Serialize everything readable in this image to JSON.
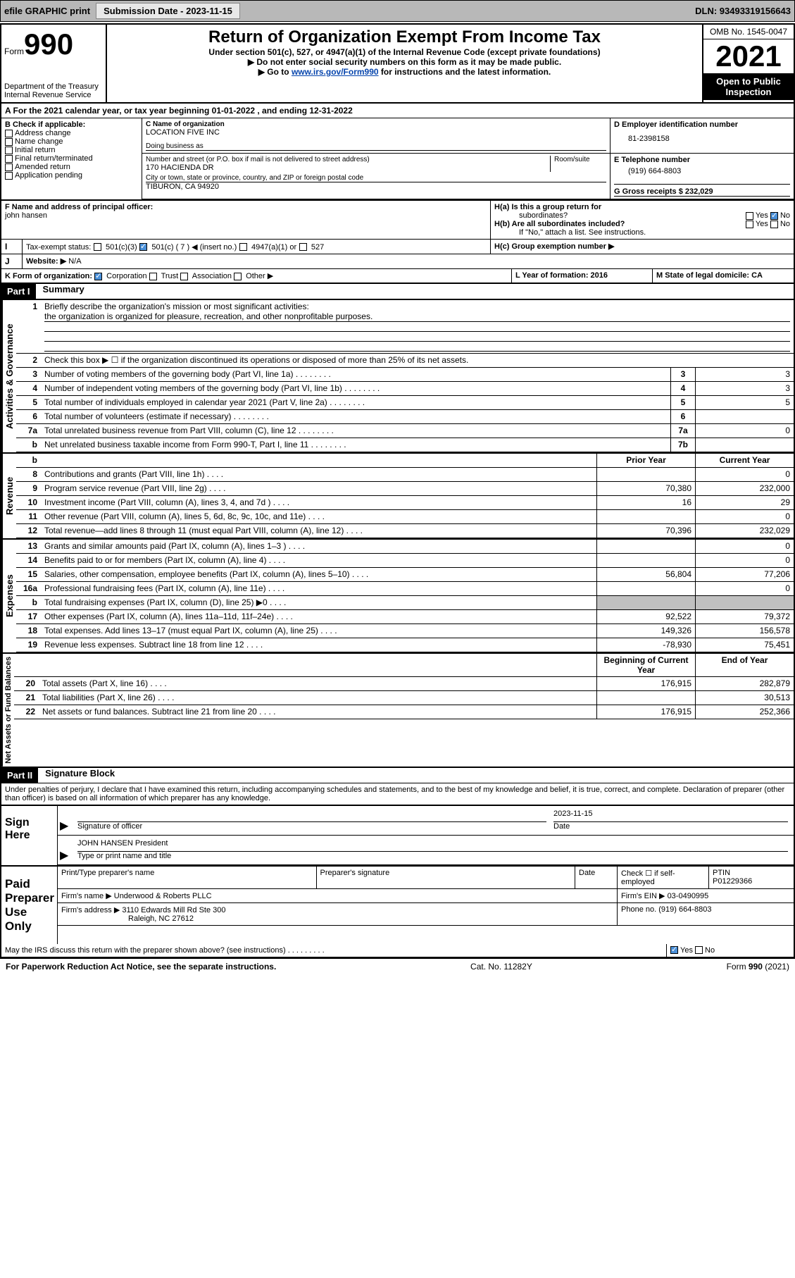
{
  "topbar": {
    "efile": "efile GRAPHIC print",
    "submission_label": "Submission Date - 2023-11-15",
    "dln": "DLN: 93493319156643"
  },
  "header": {
    "form_label": "Form",
    "form_number": "990",
    "dept": "Department of the Treasury",
    "irs": "Internal Revenue Service",
    "title": "Return of Organization Exempt From Income Tax",
    "subtitle": "Under section 501(c), 527, or 4947(a)(1) of the Internal Revenue Code (except private foundations)",
    "note1": "▶ Do not enter social security numbers on this form as it may be made public.",
    "note2_prefix": "▶ Go to ",
    "note2_link": "www.irs.gov/Form990",
    "note2_suffix": " for instructions and the latest information.",
    "omb": "OMB No. 1545-0047",
    "year": "2021",
    "inspection": "Open to Public Inspection"
  },
  "sectionA": {
    "label": "A For the 2021 calendar year, or tax year beginning 01-01-2022    , and ending 12-31-2022"
  },
  "sectionB": {
    "label": "B Check if applicable:",
    "opts": [
      "Address change",
      "Name change",
      "Initial return",
      "Final return/terminated",
      "Amended return",
      "Application pending"
    ]
  },
  "sectionC": {
    "name_label": "C Name of organization",
    "name": "LOCATION FIVE INC",
    "dba_label": "Doing business as",
    "street_label": "Number and street (or P.O. box if mail is not delivered to street address)",
    "room_label": "Room/suite",
    "street": "170 HACIENDA DR",
    "city_label": "City or town, state or province, country, and ZIP or foreign postal code",
    "city": "TIBURON, CA  94920"
  },
  "sectionD": {
    "label": "D Employer identification number",
    "value": "81-2398158"
  },
  "sectionE": {
    "label": "E Telephone number",
    "value": "(919) 664-8803"
  },
  "sectionG": {
    "label": "G Gross receipts $ 232,029"
  },
  "sectionF": {
    "label": "F Name and address of principal officer:",
    "name": "john hansen"
  },
  "sectionH": {
    "ha": "H(a)  Is this a group return for",
    "ha2": "subordinates?",
    "hb": "H(b)  Are all subordinates included?",
    "hb_note": "If \"No,\" attach a list. See instructions.",
    "hc": "H(c)  Group exemption number ▶"
  },
  "sectionI": {
    "label": "Tax-exempt status:",
    "opts": [
      "501(c)(3)",
      "501(c) ( 7 ) ◀ (insert no.)",
      "4947(a)(1) or",
      "527"
    ]
  },
  "sectionJ": {
    "label": "Website: ▶",
    "value": "N/A"
  },
  "sectionK": {
    "label": "K Form of organization:",
    "opts": [
      "Corporation",
      "Trust",
      "Association",
      "Other ▶"
    ]
  },
  "sectionL": {
    "label": "L Year of formation: 2016"
  },
  "sectionM": {
    "label": "M State of legal domicile: CA"
  },
  "part1": {
    "header": "Part I",
    "title": "Summary",
    "line1_label": "Briefly describe the organization's mission or most significant activities:",
    "line1_text": "the organization is organized for pleasure, recreation, and other nonprofitable purposes.",
    "line2": "Check this box ▶ ☐  if the organization discontinued its operations or disposed of more than 25% of its net assets.",
    "rows_gov": [
      {
        "num": "3",
        "text": "Number of voting members of the governing body (Part VI, line 1a)",
        "box": "3",
        "val": "3"
      },
      {
        "num": "4",
        "text": "Number of independent voting members of the governing body (Part VI, line 1b)",
        "box": "4",
        "val": "3"
      },
      {
        "num": "5",
        "text": "Total number of individuals employed in calendar year 2021 (Part V, line 2a)",
        "box": "5",
        "val": "5"
      },
      {
        "num": "6",
        "text": "Total number of volunteers (estimate if necessary)",
        "box": "6",
        "val": ""
      },
      {
        "num": "7a",
        "text": "Total unrelated business revenue from Part VIII, column (C), line 12",
        "box": "7a",
        "val": "0"
      },
      {
        "num": "b",
        "text": "Net unrelated business taxable income from Form 990-T, Part I, line 11",
        "box": "7b",
        "val": ""
      }
    ],
    "col_headers": {
      "prior": "Prior Year",
      "current": "Current Year"
    },
    "rows_rev": [
      {
        "num": "8",
        "text": "Contributions and grants (Part VIII, line 1h)",
        "prior": "",
        "curr": "0"
      },
      {
        "num": "9",
        "text": "Program service revenue (Part VIII, line 2g)",
        "prior": "70,380",
        "curr": "232,000"
      },
      {
        "num": "10",
        "text": "Investment income (Part VIII, column (A), lines 3, 4, and 7d )",
        "prior": "16",
        "curr": "29"
      },
      {
        "num": "11",
        "text": "Other revenue (Part VIII, column (A), lines 5, 6d, 8c, 9c, 10c, and 11e)",
        "prior": "",
        "curr": "0"
      },
      {
        "num": "12",
        "text": "Total revenue—add lines 8 through 11 (must equal Part VIII, column (A), line 12)",
        "prior": "70,396",
        "curr": "232,029"
      }
    ],
    "rows_exp": [
      {
        "num": "13",
        "text": "Grants and similar amounts paid (Part IX, column (A), lines 1–3 )",
        "prior": "",
        "curr": "0"
      },
      {
        "num": "14",
        "text": "Benefits paid to or for members (Part IX, column (A), line 4)",
        "prior": "",
        "curr": "0"
      },
      {
        "num": "15",
        "text": "Salaries, other compensation, employee benefits (Part IX, column (A), lines 5–10)",
        "prior": "56,804",
        "curr": "77,206"
      },
      {
        "num": "16a",
        "text": "Professional fundraising fees (Part IX, column (A), line 11e)",
        "prior": "",
        "curr": "0"
      },
      {
        "num": "b",
        "text": "Total fundraising expenses (Part IX, column (D), line 25) ▶0",
        "prior": "GRAY",
        "curr": "GRAY"
      },
      {
        "num": "17",
        "text": "Other expenses (Part IX, column (A), lines 11a–11d, 11f–24e)",
        "prior": "92,522",
        "curr": "79,372"
      },
      {
        "num": "18",
        "text": "Total expenses. Add lines 13–17 (must equal Part IX, column (A), line 25)",
        "prior": "149,326",
        "curr": "156,578"
      },
      {
        "num": "19",
        "text": "Revenue less expenses. Subtract line 18 from line 12",
        "prior": "-78,930",
        "curr": "75,451"
      }
    ],
    "col_headers2": {
      "begin": "Beginning of Current Year",
      "end": "End of Year"
    },
    "rows_net": [
      {
        "num": "20",
        "text": "Total assets (Part X, line 16)",
        "prior": "176,915",
        "curr": "282,879"
      },
      {
        "num": "21",
        "text": "Total liabilities (Part X, line 26)",
        "prior": "",
        "curr": "30,513"
      },
      {
        "num": "22",
        "text": "Net assets or fund balances. Subtract line 21 from line 20",
        "prior": "176,915",
        "curr": "252,366"
      }
    ]
  },
  "part2": {
    "header": "Part II",
    "title": "Signature Block",
    "declaration": "Under penalties of perjury, I declare that I have examined this return, including accompanying schedules and statements, and to the best of my knowledge and belief, it is true, correct, and complete. Declaration of preparer (other than officer) is based on all information of which preparer has any knowledge."
  },
  "sign": {
    "label": "Sign Here",
    "sig_label": "Signature of officer",
    "date_label": "Date",
    "date": "2023-11-15",
    "name": "JOHN HANSEN  President",
    "name_label": "Type or print name and title"
  },
  "preparer": {
    "label": "Paid Preparer Use Only",
    "cols": [
      "Print/Type preparer's name",
      "Preparer's signature",
      "Date"
    ],
    "check_label": "Check ☐ if self-employed",
    "ptin_label": "PTIN",
    "ptin": "P01229366",
    "firm_name_label": "Firm's name     ▶",
    "firm_name": "Underwood & Roberts PLLC",
    "firm_ein_label": "Firm's EIN ▶",
    "firm_ein": "03-0490995",
    "firm_addr_label": "Firm's address ▶",
    "firm_addr": "3110 Edwards Mill Rd Ste 300",
    "firm_city": "Raleigh, NC  27612",
    "phone_label": "Phone no.",
    "phone": "(919) 664-8803"
  },
  "footer": {
    "discuss": "May the IRS discuss this return with the preparer shown above? (see instructions)",
    "paperwork": "For Paperwork Reduction Act Notice, see the separate instructions.",
    "cat": "Cat. No. 11282Y",
    "form": "Form 990 (2021)"
  },
  "side_labels": {
    "gov": "Activities & Governance",
    "rev": "Revenue",
    "exp": "Expenses",
    "net": "Net Assets or Fund Balances"
  }
}
